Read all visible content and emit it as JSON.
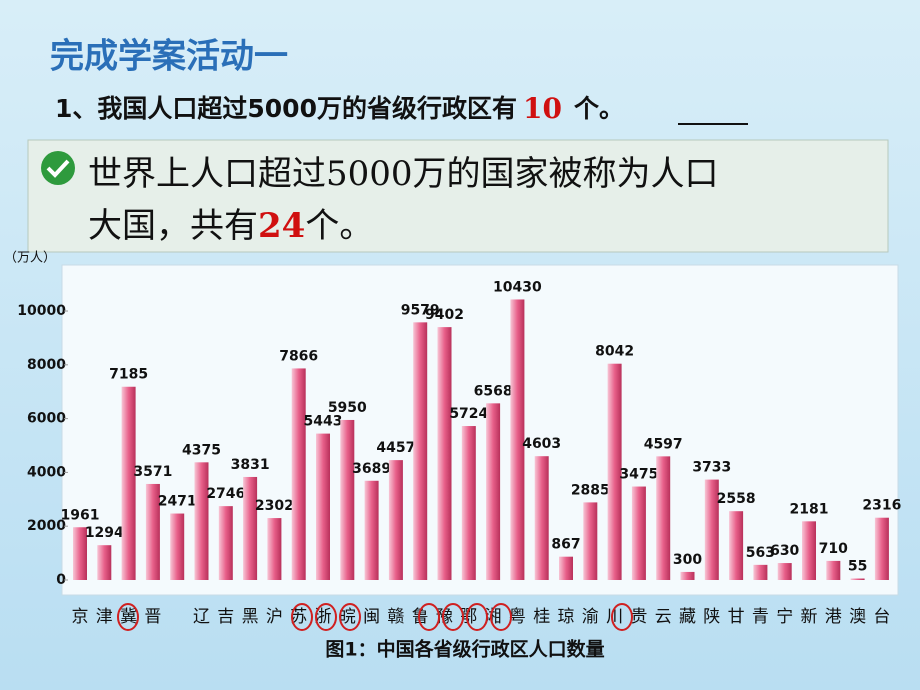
{
  "slide": {
    "heading": "完成学案活动一",
    "question": {
      "before": "1、我国人口超过5000万的省级行政区有",
      "answer": "10",
      "after": "个。"
    },
    "note": {
      "line1": "世界上人口超过5000万的国家被称为人口",
      "line2_before": "大国，共有",
      "count": "24",
      "after": "个。"
    }
  },
  "chart_data": {
    "type": "bar",
    "title": "图1：中国各省级行政区人口数量",
    "y_label": "（万人）",
    "categories": [
      "京",
      "津",
      "冀",
      "晋",
      null,
      "辽",
      "吉",
      "黑",
      "沪",
      "苏",
      "浙",
      "皖",
      "闽",
      "赣",
      "鲁",
      "豫",
      "鄂",
      "湘",
      "粤",
      "桂",
      "琼",
      "渝",
      "川",
      "贵",
      "云",
      "藏",
      "陕",
      "甘",
      "青",
      "宁",
      "新",
      "港",
      "澳",
      "台"
    ],
    "values": [
      1961,
      1294,
      7185,
      3571,
      2471,
      4375,
      2746,
      3831,
      2302,
      7866,
      5443,
      5950,
      3689,
      4457,
      9579,
      9402,
      5724,
      6568,
      10430,
      4603,
      867,
      2885,
      8042,
      3475,
      4597,
      300,
      3733,
      2558,
      563,
      630,
      2181,
      710,
      55,
      2316
    ],
    "color": "#e8608a",
    "ylim": [
      0,
      11600
    ],
    "yticks": [
      0,
      2000,
      4000,
      6000,
      8000,
      10000
    ]
  }
}
